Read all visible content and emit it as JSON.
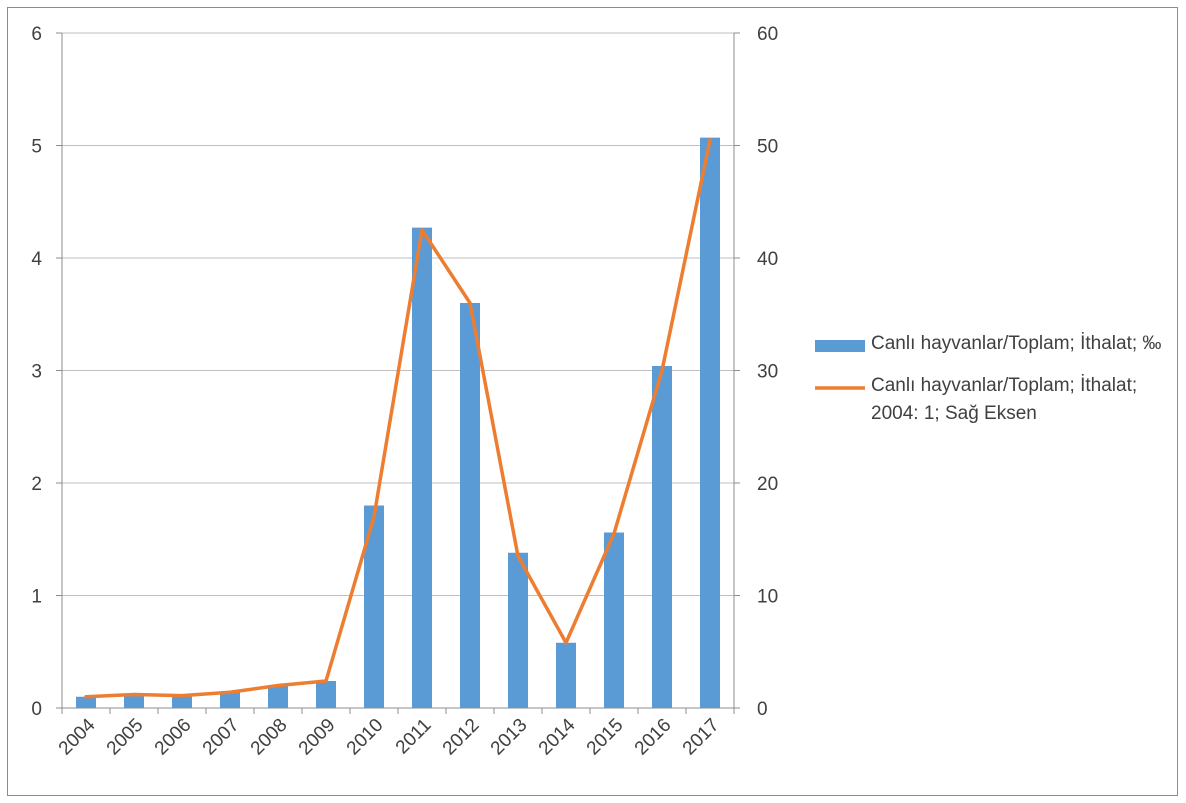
{
  "chart_data": {
    "type": "bar",
    "categories": [
      "2004",
      "2005",
      "2006",
      "2007",
      "2008",
      "2009",
      "2010",
      "2011",
      "2012",
      "2013",
      "2014",
      "2015",
      "2016",
      "2017"
    ],
    "series": [
      {
        "name": "Canlı hayvanlar/Toplam; İthalat; ‰",
        "type": "bar",
        "axis": "left",
        "color": "#5b9bd5",
        "values": [
          0.1,
          0.12,
          0.11,
          0.14,
          0.2,
          0.24,
          1.8,
          4.27,
          3.6,
          1.38,
          0.58,
          1.56,
          3.04,
          5.07
        ]
      },
      {
        "name": "Canlı hayvanlar/Toplam; İthalat; 2004: 1; Sağ Eksen",
        "type": "line",
        "axis": "right",
        "color": "#ed7d31",
        "values": [
          1.0,
          1.2,
          1.1,
          1.4,
          2.0,
          2.4,
          17.0,
          42.5,
          36.0,
          13.5,
          5.8,
          15.5,
          30.0,
          50.5
        ]
      }
    ],
    "left_axis": {
      "ylim": [
        0,
        6
      ],
      "ticks": [
        "0",
        "1",
        "2",
        "3",
        "4",
        "5",
        "6"
      ]
    },
    "right_axis": {
      "ylim": [
        0,
        60
      ],
      "ticks": [
        "0",
        "10",
        "20",
        "30",
        "40",
        "50",
        "60"
      ]
    },
    "grid": true,
    "legend_position": "right"
  }
}
